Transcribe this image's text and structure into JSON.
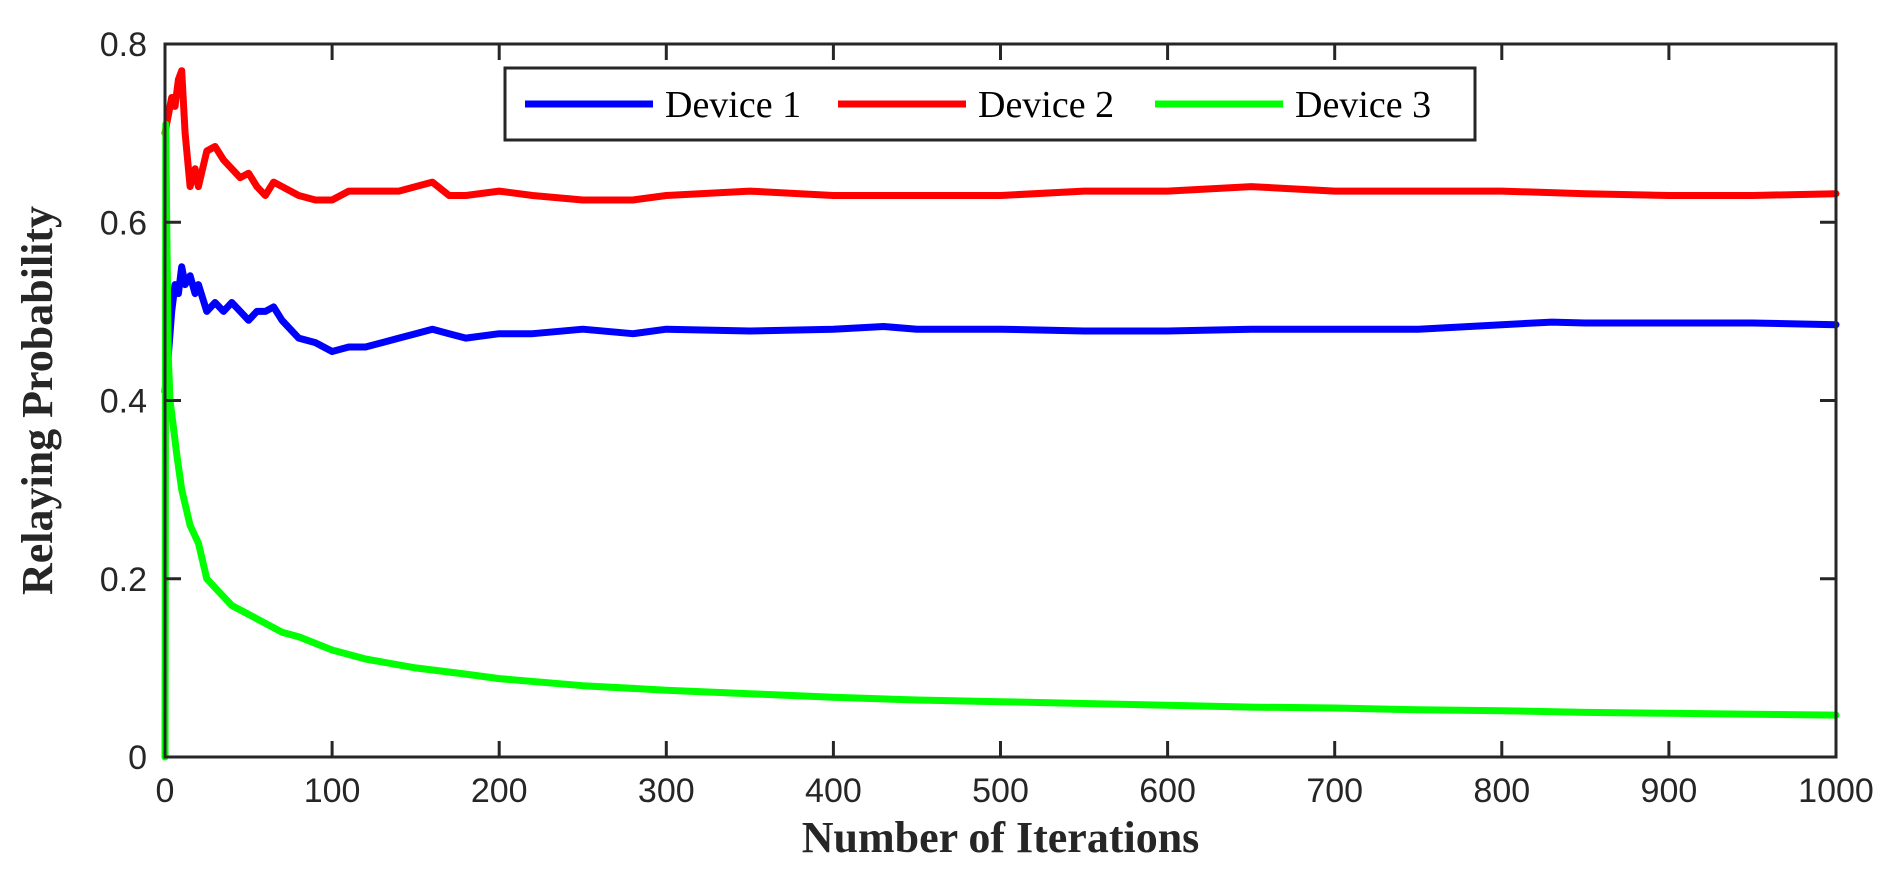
{
  "chart_data": {
    "type": "line",
    "title": "",
    "xlabel": "Number of Iterations",
    "ylabel": "Relaying Probability",
    "xlim": [
      0,
      1000
    ],
    "ylim": [
      0,
      0.8
    ],
    "xticks": [
      "0",
      "100",
      "200",
      "300",
      "400",
      "500",
      "600",
      "700",
      "800",
      "900",
      "1000"
    ],
    "yticks": [
      "0",
      "0.2",
      "0.4",
      "0.6",
      "0.8"
    ],
    "grid": false,
    "legend_position": "top-center",
    "series": [
      {
        "name": "Device 1",
        "color": "#0000ff",
        "x": [
          0,
          2,
          4,
          6,
          8,
          10,
          12,
          15,
          18,
          20,
          25,
          30,
          35,
          40,
          45,
          50,
          55,
          60,
          65,
          70,
          80,
          90,
          100,
          110,
          120,
          130,
          140,
          150,
          160,
          170,
          180,
          200,
          220,
          250,
          280,
          300,
          350,
          400,
          430,
          450,
          500,
          550,
          600,
          650,
          700,
          750,
          800,
          830,
          850,
          900,
          950,
          1000
        ],
        "y": [
          0.41,
          0.45,
          0.5,
          0.53,
          0.52,
          0.55,
          0.53,
          0.54,
          0.52,
          0.53,
          0.5,
          0.51,
          0.5,
          0.51,
          0.5,
          0.49,
          0.5,
          0.5,
          0.505,
          0.49,
          0.47,
          0.465,
          0.455,
          0.46,
          0.46,
          0.465,
          0.47,
          0.475,
          0.48,
          0.475,
          0.47,
          0.475,
          0.475,
          0.48,
          0.475,
          0.48,
          0.478,
          0.48,
          0.483,
          0.48,
          0.48,
          0.478,
          0.478,
          0.48,
          0.48,
          0.48,
          0.485,
          0.488,
          0.487,
          0.487,
          0.487,
          0.485
        ]
      },
      {
        "name": "Device 2",
        "color": "#ff0000",
        "x": [
          0,
          2,
          4,
          6,
          8,
          10,
          12,
          15,
          18,
          20,
          25,
          30,
          35,
          40,
          45,
          50,
          55,
          60,
          65,
          70,
          80,
          90,
          100,
          110,
          120,
          130,
          140,
          150,
          160,
          170,
          180,
          200,
          220,
          250,
          280,
          300,
          350,
          400,
          450,
          500,
          550,
          600,
          650,
          700,
          750,
          800,
          850,
          900,
          950,
          1000
        ],
        "y": [
          0.7,
          0.72,
          0.74,
          0.73,
          0.76,
          0.77,
          0.7,
          0.64,
          0.66,
          0.64,
          0.68,
          0.685,
          0.67,
          0.66,
          0.65,
          0.655,
          0.64,
          0.63,
          0.645,
          0.64,
          0.63,
          0.625,
          0.625,
          0.635,
          0.635,
          0.635,
          0.635,
          0.64,
          0.645,
          0.63,
          0.63,
          0.635,
          0.63,
          0.625,
          0.625,
          0.63,
          0.635,
          0.63,
          0.63,
          0.63,
          0.635,
          0.635,
          0.64,
          0.635,
          0.635,
          0.635,
          0.632,
          0.63,
          0.63,
          0.632
        ]
      },
      {
        "name": "Device 3",
        "color": "#00ff00",
        "x": [
          0,
          0.5,
          1,
          2,
          3,
          5,
          7,
          10,
          15,
          20,
          25,
          30,
          40,
          50,
          60,
          70,
          80,
          100,
          120,
          150,
          180,
          200,
          250,
          300,
          350,
          400,
          450,
          500,
          550,
          600,
          650,
          700,
          750,
          800,
          850,
          900,
          950,
          1000
        ],
        "y": [
          0.0,
          0.71,
          0.6,
          0.45,
          0.4,
          0.37,
          0.34,
          0.3,
          0.26,
          0.24,
          0.2,
          0.19,
          0.17,
          0.16,
          0.15,
          0.14,
          0.135,
          0.12,
          0.11,
          0.1,
          0.093,
          0.088,
          0.08,
          0.075,
          0.071,
          0.067,
          0.064,
          0.062,
          0.06,
          0.058,
          0.056,
          0.055,
          0.053,
          0.052,
          0.05,
          0.049,
          0.048,
          0.047
        ]
      }
    ]
  }
}
